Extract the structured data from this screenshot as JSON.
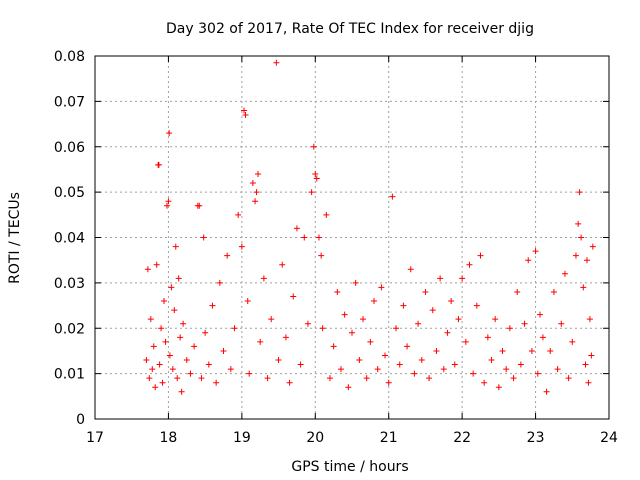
{
  "chart_data": {
    "type": "scatter",
    "title": "Day 302 of 2017, Rate Of TEC Index for receiver djig",
    "xlabel": "GPS time / hours",
    "ylabel": "ROTI / TECUs",
    "xlim": [
      17,
      24
    ],
    "ylim": [
      0,
      0.08
    ],
    "x_ticks": [
      17,
      18,
      19,
      20,
      21,
      22,
      23,
      24
    ],
    "x_tick_labels": [
      "17",
      "18",
      "19",
      "20",
      "21",
      "22",
      "23",
      "24"
    ],
    "y_ticks": [
      0,
      0.01,
      0.02,
      0.03,
      0.04,
      0.05,
      0.06,
      0.07,
      0.08
    ],
    "y_tick_labels": [
      "0",
      "0.01",
      "0.02",
      "0.03",
      "0.04",
      "0.05",
      "0.06",
      "0.07",
      "0.08"
    ],
    "grid": true,
    "marker": "+",
    "series": [
      {
        "name": "ROTI",
        "color": "#ff0000",
        "points": [
          [
            17.7,
            0.013
          ],
          [
            17.72,
            0.033
          ],
          [
            17.74,
            0.009
          ],
          [
            17.76,
            0.022
          ],
          [
            17.78,
            0.011
          ],
          [
            17.8,
            0.016
          ],
          [
            17.82,
            0.007
          ],
          [
            17.84,
            0.034
          ],
          [
            17.86,
            0.056
          ],
          [
            17.87,
            0.056
          ],
          [
            17.88,
            0.012
          ],
          [
            17.9,
            0.02
          ],
          [
            17.92,
            0.008
          ],
          [
            17.94,
            0.026
          ],
          [
            17.96,
            0.017
          ],
          [
            17.98,
            0.047
          ],
          [
            18.0,
            0.048
          ],
          [
            18.01,
            0.063
          ],
          [
            18.02,
            0.014
          ],
          [
            18.04,
            0.029
          ],
          [
            18.06,
            0.011
          ],
          [
            18.08,
            0.024
          ],
          [
            18.1,
            0.038
          ],
          [
            18.12,
            0.009
          ],
          [
            18.14,
            0.031
          ],
          [
            18.16,
            0.018
          ],
          [
            18.18,
            0.006
          ],
          [
            18.2,
            0.021
          ],
          [
            18.25,
            0.013
          ],
          [
            18.3,
            0.01
          ],
          [
            18.35,
            0.016
          ],
          [
            18.4,
            0.047
          ],
          [
            18.42,
            0.047
          ],
          [
            18.45,
            0.009
          ],
          [
            18.48,
            0.04
          ],
          [
            18.5,
            0.019
          ],
          [
            18.55,
            0.012
          ],
          [
            18.6,
            0.025
          ],
          [
            18.65,
            0.008
          ],
          [
            18.7,
            0.03
          ],
          [
            18.75,
            0.015
          ],
          [
            18.8,
            0.036
          ],
          [
            18.85,
            0.011
          ],
          [
            18.9,
            0.02
          ],
          [
            18.95,
            0.045
          ],
          [
            19.0,
            0.038
          ],
          [
            19.03,
            0.068
          ],
          [
            19.05,
            0.067
          ],
          [
            19.08,
            0.026
          ],
          [
            19.1,
            0.01
          ],
          [
            19.15,
            0.052
          ],
          [
            19.18,
            0.048
          ],
          [
            19.2,
            0.05
          ],
          [
            19.22,
            0.054
          ],
          [
            19.25,
            0.017
          ],
          [
            19.3,
            0.031
          ],
          [
            19.35,
            0.009
          ],
          [
            19.4,
            0.022
          ],
          [
            19.47,
            0.0785
          ],
          [
            19.5,
            0.013
          ],
          [
            19.55,
            0.034
          ],
          [
            19.6,
            0.018
          ],
          [
            19.65,
            0.008
          ],
          [
            19.7,
            0.027
          ],
          [
            19.75,
            0.042
          ],
          [
            19.8,
            0.012
          ],
          [
            19.85,
            0.04
          ],
          [
            19.9,
            0.021
          ],
          [
            19.95,
            0.05
          ],
          [
            19.98,
            0.06
          ],
          [
            20.0,
            0.054
          ],
          [
            20.02,
            0.053
          ],
          [
            20.05,
            0.04
          ],
          [
            20.08,
            0.036
          ],
          [
            20.1,
            0.02
          ],
          [
            20.15,
            0.045
          ],
          [
            20.2,
            0.009
          ],
          [
            20.25,
            0.016
          ],
          [
            20.3,
            0.028
          ],
          [
            20.35,
            0.011
          ],
          [
            20.4,
            0.023
          ],
          [
            20.45,
            0.007
          ],
          [
            20.5,
            0.019
          ],
          [
            20.55,
            0.03
          ],
          [
            20.6,
            0.013
          ],
          [
            20.65,
            0.022
          ],
          [
            20.7,
            0.009
          ],
          [
            20.75,
            0.017
          ],
          [
            20.8,
            0.026
          ],
          [
            20.85,
            0.011
          ],
          [
            20.9,
            0.029
          ],
          [
            20.95,
            0.014
          ],
          [
            21.0,
            0.008
          ],
          [
            21.05,
            0.049
          ],
          [
            21.1,
            0.02
          ],
          [
            21.15,
            0.012
          ],
          [
            21.2,
            0.025
          ],
          [
            21.25,
            0.016
          ],
          [
            21.3,
            0.033
          ],
          [
            21.35,
            0.01
          ],
          [
            21.4,
            0.021
          ],
          [
            21.45,
            0.013
          ],
          [
            21.5,
            0.028
          ],
          [
            21.55,
            0.009
          ],
          [
            21.6,
            0.024
          ],
          [
            21.65,
            0.015
          ],
          [
            21.7,
            0.031
          ],
          [
            21.75,
            0.011
          ],
          [
            21.8,
            0.019
          ],
          [
            21.85,
            0.026
          ],
          [
            21.9,
            0.012
          ],
          [
            21.95,
            0.022
          ],
          [
            22.0,
            0.031
          ],
          [
            22.05,
            0.017
          ],
          [
            22.1,
            0.034
          ],
          [
            22.15,
            0.01
          ],
          [
            22.2,
            0.025
          ],
          [
            22.25,
            0.036
          ],
          [
            22.3,
            0.008
          ],
          [
            22.35,
            0.018
          ],
          [
            22.4,
            0.013
          ],
          [
            22.45,
            0.022
          ],
          [
            22.5,
            0.007
          ],
          [
            22.55,
            0.015
          ],
          [
            22.6,
            0.011
          ],
          [
            22.65,
            0.02
          ],
          [
            22.7,
            0.009
          ],
          [
            22.75,
            0.028
          ],
          [
            22.8,
            0.012
          ],
          [
            22.85,
            0.021
          ],
          [
            22.9,
            0.035
          ],
          [
            22.95,
            0.015
          ],
          [
            23.0,
            0.037
          ],
          [
            23.03,
            0.01
          ],
          [
            23.06,
            0.023
          ],
          [
            23.1,
            0.018
          ],
          [
            23.15,
            0.006
          ],
          [
            23.2,
            0.015
          ],
          [
            23.25,
            0.028
          ],
          [
            23.3,
            0.011
          ],
          [
            23.35,
            0.021
          ],
          [
            23.4,
            0.032
          ],
          [
            23.45,
            0.009
          ],
          [
            23.5,
            0.017
          ],
          [
            23.55,
            0.036
          ],
          [
            23.58,
            0.043
          ],
          [
            23.6,
            0.05
          ],
          [
            23.62,
            0.04
          ],
          [
            23.65,
            0.029
          ],
          [
            23.68,
            0.012
          ],
          [
            23.7,
            0.035
          ],
          [
            23.72,
            0.008
          ],
          [
            23.74,
            0.022
          ],
          [
            23.76,
            0.014
          ],
          [
            23.78,
            0.038
          ]
        ]
      }
    ]
  }
}
